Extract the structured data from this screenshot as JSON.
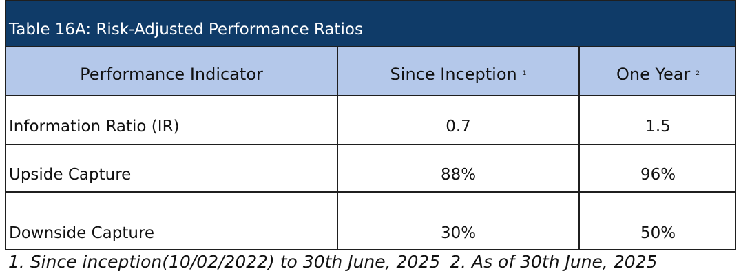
{
  "table": {
    "title": "Table 16A: Risk-Adjusted Performance Ratios",
    "columns": [
      {
        "label": "Performance Indicator",
        "note": ""
      },
      {
        "label": "Since Inception",
        "note": "1"
      },
      {
        "label": "One Year",
        "note": "2"
      }
    ],
    "rows": [
      {
        "indicator": "Information Ratio (IR)",
        "since_inception": "0.7",
        "one_year": "1.5"
      },
      {
        "indicator": "Upside Capture",
        "since_inception": "88%",
        "one_year": "96%"
      },
      {
        "indicator": "Downside Capture",
        "since_inception": "30%",
        "one_year": "50%"
      }
    ],
    "colors": {
      "title_background": "#0f3b68",
      "title_text": "#ffffff",
      "header_background": "#b4c8ea",
      "border": "#1f1f1f"
    }
  },
  "footnotes": {
    "note1": "1. Since inception(10/02/2022) to 30th June, 2025",
    "note2": "2. As of 30th June, 2025"
  }
}
